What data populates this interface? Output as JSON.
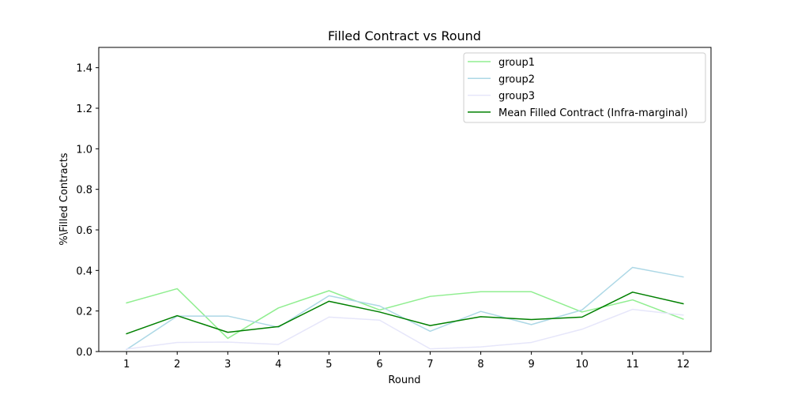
{
  "chart_data": {
    "type": "line",
    "title": "Filled Contract vs Round",
    "xlabel": "Round",
    "ylabel": "%\\Filled Contracts",
    "x": [
      1,
      2,
      3,
      4,
      5,
      6,
      7,
      8,
      9,
      10,
      11,
      12
    ],
    "xlim": [
      0.45,
      12.55
    ],
    "ylim": [
      0,
      1.5
    ],
    "yticks": [
      0.0,
      0.2,
      0.4,
      0.6,
      0.8,
      1.0,
      1.2,
      1.4
    ],
    "ytick_labels": [
      "0.0",
      "0.2",
      "0.4",
      "0.6",
      "0.8",
      "1.0",
      "1.2",
      "1.4"
    ],
    "xtick_labels": [
      "1",
      "2",
      "3",
      "4",
      "5",
      "6",
      "7",
      "8",
      "9",
      "10",
      "11",
      "12"
    ],
    "grid": false,
    "legend_position": "top-right",
    "series": [
      {
        "name": "group1",
        "color": "#90ee90",
        "width": 1.5,
        "values": [
          0.24,
          0.31,
          0.065,
          0.215,
          0.3,
          0.205,
          0.272,
          0.295,
          0.295,
          0.195,
          0.255,
          0.16
        ]
      },
      {
        "name": "group2",
        "color": "#add8e6",
        "width": 1.5,
        "values": [
          0.01,
          0.175,
          0.175,
          0.12,
          0.275,
          0.225,
          0.1,
          0.198,
          0.133,
          0.205,
          0.415,
          0.368
        ]
      },
      {
        "name": "group3",
        "color": "#e6e6fa",
        "width": 1.5,
        "values": [
          0.012,
          0.045,
          0.047,
          0.035,
          0.17,
          0.155,
          0.013,
          0.023,
          0.045,
          0.11,
          0.208,
          0.18
        ]
      },
      {
        "name": "Mean Filled Contract (Infra-marginal)",
        "color": "#008000",
        "width": 1.5,
        "values": [
          0.088,
          0.177,
          0.095,
          0.123,
          0.248,
          0.195,
          0.128,
          0.172,
          0.158,
          0.17,
          0.293,
          0.236
        ]
      }
    ]
  }
}
